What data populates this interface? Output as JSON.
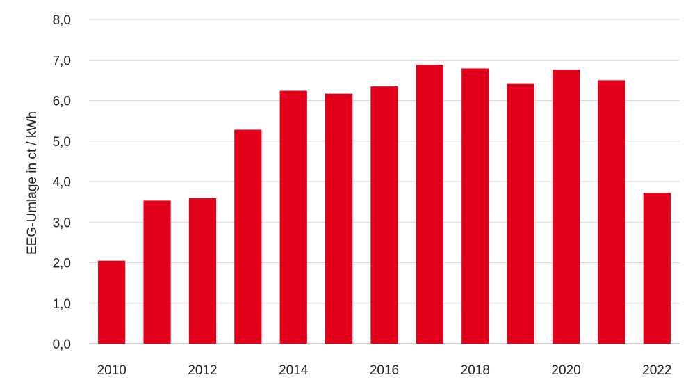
{
  "chart_data": {
    "type": "bar",
    "title": "",
    "xlabel": "",
    "ylabel": "EEG-Umlage in ct / kWh",
    "categories": [
      "2010",
      "2011",
      "2012",
      "2013",
      "2014",
      "2015",
      "2016",
      "2017",
      "2018",
      "2019",
      "2020",
      "2021",
      "2022"
    ],
    "x_tick_labels": [
      "2010",
      "",
      "2012",
      "",
      "2014",
      "",
      "2016",
      "",
      "2018",
      "",
      "2020",
      "",
      "2022"
    ],
    "values": [
      2.05,
      3.53,
      3.59,
      5.28,
      6.24,
      6.17,
      6.35,
      6.88,
      6.79,
      6.41,
      6.76,
      6.5,
      3.72
    ],
    "ylim": [
      0,
      8
    ],
    "y_ticks": [
      "0,0",
      "1,0",
      "2,0",
      "3,0",
      "4,0",
      "5,0",
      "6,0",
      "7,0",
      "8,0"
    ],
    "grid": true,
    "bar_color": "#e2001a"
  }
}
